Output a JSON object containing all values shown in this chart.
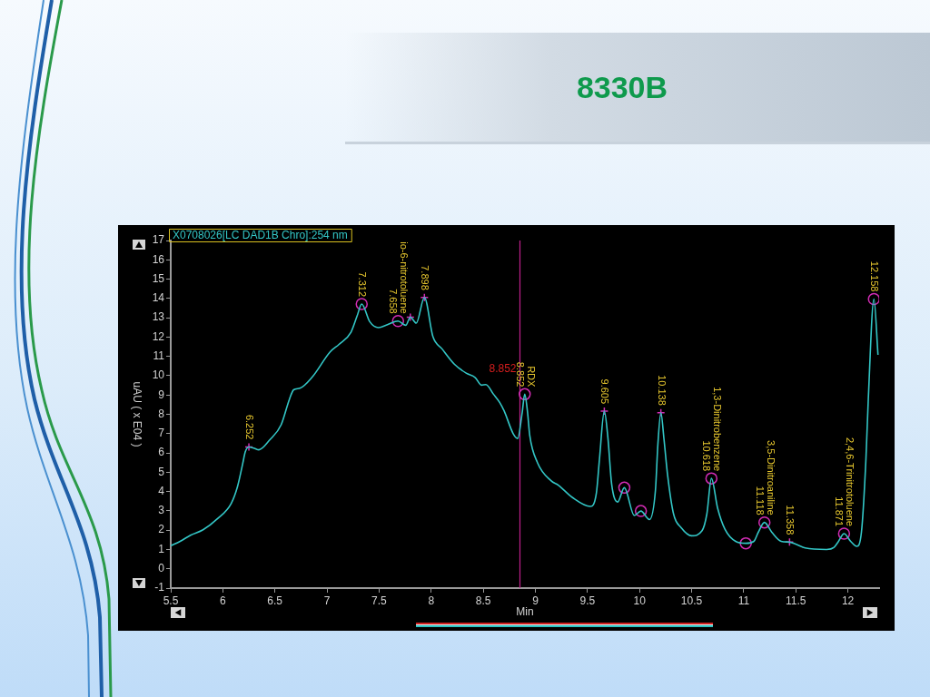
{
  "chart_data": {
    "type": "line",
    "title": "8330B",
    "xlabel": "Min",
    "ylabel": "uAU ( x E04 )",
    "legend": "top left",
    "xlim": [
      5.5,
      12.3
    ],
    "xticks": [
      5.5,
      6,
      6.5,
      7,
      7.5,
      8,
      8.5,
      9,
      9.5,
      10,
      10.5,
      11,
      11.5,
      12
    ],
    "ylim": [
      -1,
      17
    ],
    "yticks": [
      -1,
      0,
      1,
      2,
      3,
      4,
      5,
      6,
      7,
      8,
      9,
      10,
      11,
      12,
      13,
      14,
      15,
      16,
      17
    ],
    "series": [
      {
        "name": "X0708026[LC DAD1B Chro]:254 nm",
        "type": "line",
        "color": "#33c6c6",
        "marker": "none",
        "x": [
          5.5,
          5.59,
          5.69,
          5.81,
          5.95,
          6.08,
          6.14,
          6.19,
          6.215,
          6.25,
          6.302,
          6.346,
          6.45,
          6.56,
          6.64,
          6.68,
          6.74,
          6.854,
          7.03,
          7.115,
          7.23,
          7.29,
          7.333,
          7.41,
          7.494,
          7.58,
          7.682,
          7.756,
          7.8,
          7.857,
          7.935,
          8.017,
          8.104,
          8.22,
          8.336,
          8.423,
          8.482,
          8.525,
          8.598,
          8.657,
          8.7,
          8.787,
          8.83,
          8.874,
          8.898,
          8.925,
          8.946,
          9.02,
          9.15,
          9.223,
          9.354,
          9.528,
          9.586,
          9.615,
          9.662,
          9.697,
          9.732,
          9.79,
          9.854,
          9.95,
          10.013,
          10.095,
          10.153,
          10.176,
          10.205,
          10.234,
          10.269,
          10.327,
          10.4,
          10.5,
          10.6,
          10.646,
          10.69,
          10.749,
          10.82,
          10.923,
          11.02,
          11.097,
          11.14,
          11.199,
          11.27,
          11.36,
          11.44,
          11.504,
          11.59,
          11.795,
          11.867,
          11.91,
          11.963,
          12.027,
          12.085,
          12.13,
          12.173,
          12.196,
          12.25,
          12.289
        ],
        "values": [
          1.19,
          1.42,
          1.74,
          2.02,
          2.6,
          3.38,
          4.24,
          5.42,
          6.05,
          6.31,
          6.24,
          6.16,
          6.67,
          7.46,
          8.79,
          9.27,
          9.35,
          9.9,
          11.23,
          11.62,
          12.25,
          13.11,
          13.71,
          12.8,
          12.49,
          12.64,
          12.83,
          12.61,
          13.03,
          12.72,
          14.05,
          12.02,
          11.39,
          10.61,
          10.13,
          9.9,
          9.51,
          9.54,
          9.04,
          8.62,
          8.18,
          7.0,
          6.75,
          8.1,
          9.04,
          8.1,
          6.91,
          5.5,
          4.56,
          4.32,
          3.7,
          3.23,
          3.93,
          5.65,
          8.16,
          6.75,
          4.4,
          3.46,
          4.2,
          2.76,
          2.99,
          2.55,
          4.09,
          6.44,
          8.08,
          6.75,
          4.87,
          2.83,
          2.13,
          1.71,
          1.97,
          2.83,
          4.68,
          3.15,
          2.05,
          1.42,
          1.32,
          1.42,
          1.89,
          2.4,
          1.89,
          1.42,
          1.38,
          1.27,
          1.08,
          1.0,
          1.11,
          1.42,
          1.82,
          1.42,
          1.16,
          1.89,
          5.65,
          8.79,
          13.97,
          11.08
        ]
      },
      {
        "type": "scatter",
        "color": "#d22cb4",
        "marker": "circle",
        "x": [
          7.333,
          7.682,
          8.898,
          9.854,
          10.013,
          10.69,
          11.02,
          11.199,
          11.963,
          12.25
        ],
        "values": [
          13.71,
          12.83,
          9.04,
          4.2,
          2.99,
          4.68,
          1.32,
          2.4,
          1.82,
          13.97
        ]
      },
      {
        "type": "scatter",
        "color": "#d22cb4",
        "marker": "cross",
        "x": [
          6.25,
          7.8,
          7.935,
          9.662,
          10.205,
          11.44
        ],
        "values": [
          6.31,
          13.03,
          14.05,
          8.16,
          8.08,
          1.38
        ]
      }
    ],
    "ref_lines": [
      {
        "axis": "x",
        "value": 8.852,
        "label": "8.852",
        "color": "#c0208c"
      }
    ],
    "annotations": [
      {
        "text": "6.252",
        "x": 6.25,
        "y": 6.31
      },
      {
        "text": "7.312",
        "x": 7.333,
        "y": 13.71
      },
      {
        "text": "io-6-nitrotoluene",
        "x": 7.682,
        "y": 12.83
      },
      {
        "text": "7.658",
        "x": 7.682,
        "y": 12.83
      },
      {
        "text": "7.898",
        "x": 7.935,
        "y": 14.05
      },
      {
        "text": "RDX",
        "x": 8.898,
        "y": 9.04
      },
      {
        "text": "8.852",
        "x": 8.898,
        "y": 9.04
      },
      {
        "text": "9.605",
        "x": 9.662,
        "y": 8.16
      },
      {
        "text": "10.138",
        "x": 10.205,
        "y": 8.08
      },
      {
        "text": "1,3-Dinitrobenzene",
        "x": 10.69,
        "y": 4.68
      },
      {
        "text": "10.618",
        "x": 10.69,
        "y": 4.68
      },
      {
        "text": "3,5-Dinitroaniline",
        "x": 11.199,
        "y": 2.4
      },
      {
        "text": "11.118",
        "x": 11.199,
        "y": 2.4
      },
      {
        "text": "11.358",
        "x": 11.44,
        "y": 1.38
      },
      {
        "text": "2,4,6-Trinitrotoluene",
        "x": 11.963,
        "y": 1.82
      },
      {
        "text": "11.871",
        "x": 11.963,
        "y": 1.82
      },
      {
        "text": "12.158",
        "x": 12.25,
        "y": 13.97
      }
    ]
  }
}
